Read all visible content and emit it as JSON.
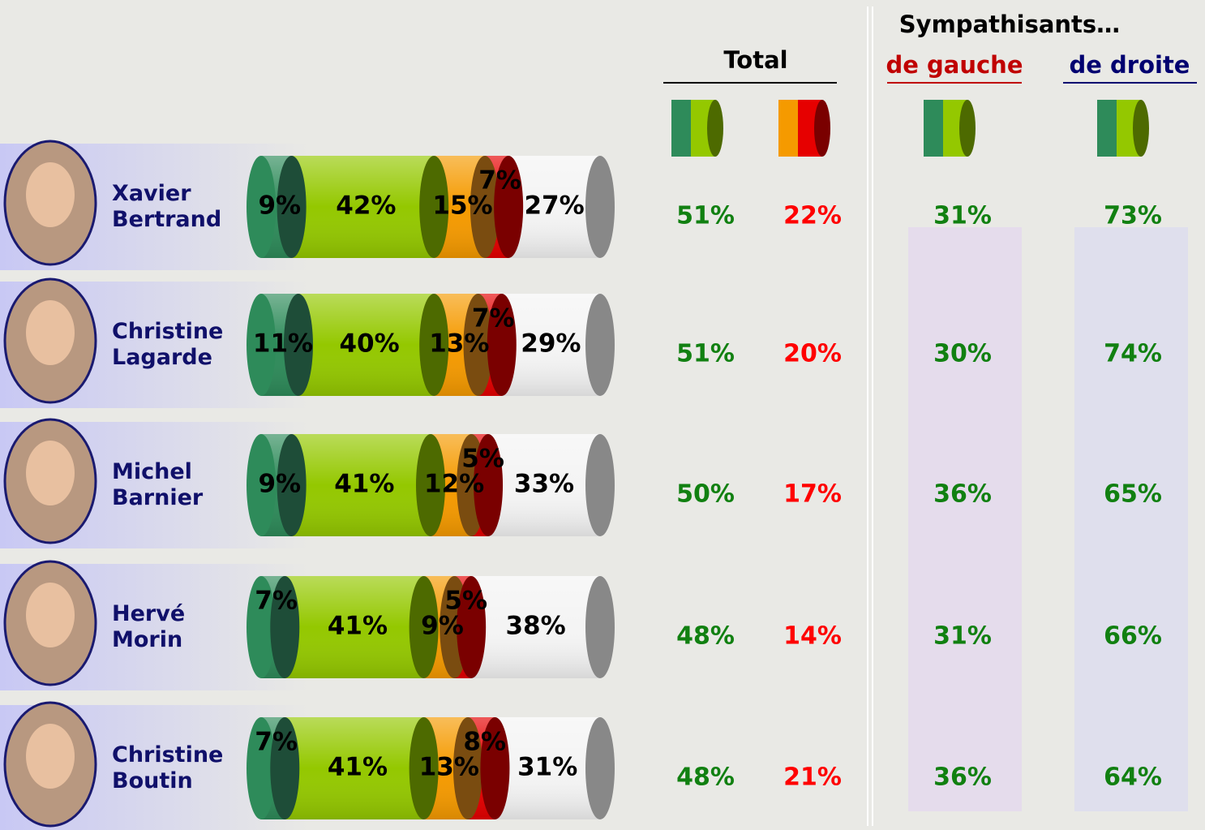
{
  "chart_data": {
    "type": "stacked_bar",
    "categories": [
      "Xavier Bertrand",
      "Christine Lagarde",
      "Michel Barnier",
      "Hervé Morin",
      "Christine Boutin"
    ],
    "series": [
      {
        "color": "#2e8b5a",
        "cap": "#1e4d38",
        "values": [
          9,
          11,
          9,
          7,
          7
        ],
        "value_labels": [
          "9%",
          "11%",
          "9%",
          "7%",
          "7%"
        ]
      },
      {
        "color": "#94c800",
        "cap": "#4d6a00",
        "values": [
          42,
          40,
          41,
          41,
          41
        ],
        "value_labels": [
          "42%",
          "40%",
          "41%",
          "41%",
          "41%"
        ]
      },
      {
        "color": "#f59a00",
        "cap": "#7a4c10",
        "values": [
          15,
          13,
          12,
          9,
          13
        ],
        "value_labels": [
          "15%",
          "13%",
          "12%",
          "9%",
          "13%"
        ]
      },
      {
        "color": "#e60000",
        "cap": "#7a0000",
        "values": [
          7,
          7,
          5,
          5,
          8
        ],
        "value_labels": [
          "7%",
          "7%",
          "5%",
          "5%",
          "8%"
        ]
      },
      {
        "color": "#f4f4f4",
        "cap": "#888888",
        "values": [
          27,
          29,
          33,
          38,
          31
        ],
        "value_labels": [
          "27%",
          "29%",
          "33%",
          "38%",
          "31%"
        ]
      }
    ]
  },
  "table": {
    "group_header": "Sympathisants…",
    "headers": [
      "Total",
      "de gauche",
      "de droite"
    ],
    "rows": [
      [
        "51%",
        "22%",
        "31%",
        "73%"
      ],
      [
        "51%",
        "20%",
        "30%",
        "74%"
      ],
      [
        "50%",
        "17%",
        "36%",
        "65%"
      ],
      [
        "48%",
        "14%",
        "31%",
        "66%"
      ],
      [
        "48%",
        "21%",
        "36%",
        "64%"
      ]
    ]
  }
}
